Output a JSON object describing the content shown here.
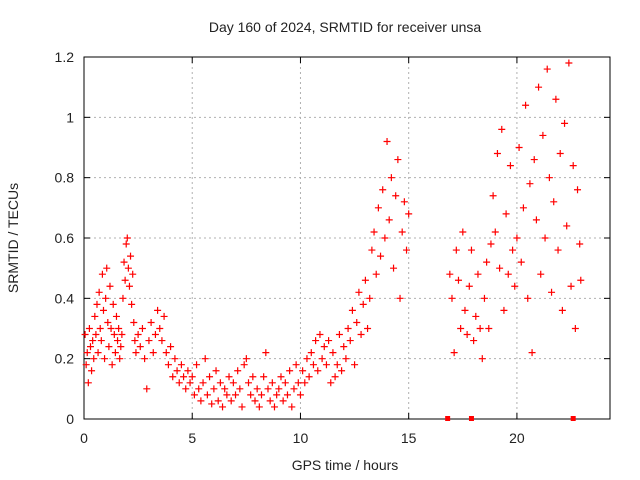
{
  "chart_data": {
    "type": "scatter",
    "title": "Day 160 of 2024, SRMTID for receiver unsa",
    "xlabel": "GPS time / hours",
    "ylabel": "SRMTID / TECUs",
    "xlim": [
      0,
      24.3
    ],
    "ylim": [
      0,
      1.2
    ],
    "xticks": [
      0,
      5,
      10,
      15,
      20
    ],
    "yticks": [
      0,
      0.2,
      0.4,
      0.6,
      0.8,
      1,
      1.2
    ],
    "xtick_labels": [
      "0",
      "5",
      "10",
      "15",
      "20"
    ],
    "ytick_labels": [
      "0",
      "0.2",
      "0.4",
      "0.6",
      "0.8",
      "1",
      "1.2"
    ],
    "grid": true,
    "marker": "plus",
    "series_color": "#ff0000",
    "series": [
      {
        "name": "SRMTID",
        "points": [
          [
            0.05,
            0.28
          ],
          [
            0.1,
            0.18
          ],
          [
            0.15,
            0.22
          ],
          [
            0.2,
            0.12
          ],
          [
            0.25,
            0.3
          ],
          [
            0.3,
            0.24
          ],
          [
            0.35,
            0.16
          ],
          [
            0.4,
            0.26
          ],
          [
            0.45,
            0.2
          ],
          [
            0.5,
            0.34
          ],
          [
            0.55,
            0.28
          ],
          [
            0.6,
            0.38
          ],
          [
            0.65,
            0.22
          ],
          [
            0.7,
            0.42
          ],
          [
            0.75,
            0.3
          ],
          [
            0.8,
            0.26
          ],
          [
            0.85,
            0.48
          ],
          [
            0.9,
            0.36
          ],
          [
            0.95,
            0.2
          ],
          [
            1.0,
            0.4
          ],
          [
            1.05,
            0.5
          ],
          [
            1.1,
            0.32
          ],
          [
            1.15,
            0.24
          ],
          [
            1.2,
            0.44
          ],
          [
            1.25,
            0.3
          ],
          [
            1.3,
            0.18
          ],
          [
            1.35,
            0.38
          ],
          [
            1.4,
            0.28
          ],
          [
            1.45,
            0.22
          ],
          [
            1.5,
            0.34
          ],
          [
            1.55,
            0.26
          ],
          [
            1.6,
            0.3
          ],
          [
            1.65,
            0.2
          ],
          [
            1.7,
            0.24
          ],
          [
            1.75,
            0.28
          ],
          [
            1.8,
            0.4
          ],
          [
            1.85,
            0.52
          ],
          [
            1.9,
            0.46
          ],
          [
            1.95,
            0.58
          ],
          [
            2.0,
            0.6
          ],
          [
            2.05,
            0.5
          ],
          [
            2.1,
            0.44
          ],
          [
            2.15,
            0.54
          ],
          [
            2.2,
            0.38
          ],
          [
            2.25,
            0.48
          ],
          [
            2.3,
            0.32
          ],
          [
            2.35,
            0.26
          ],
          [
            2.4,
            0.22
          ],
          [
            2.5,
            0.28
          ],
          [
            2.6,
            0.24
          ],
          [
            2.7,
            0.3
          ],
          [
            2.8,
            0.2
          ],
          [
            2.9,
            0.1
          ],
          [
            3.0,
            0.26
          ],
          [
            3.1,
            0.32
          ],
          [
            3.2,
            0.22
          ],
          [
            3.3,
            0.28
          ],
          [
            3.4,
            0.36
          ],
          [
            3.5,
            0.3
          ],
          [
            3.6,
            0.26
          ],
          [
            3.7,
            0.34
          ],
          [
            3.8,
            0.22
          ],
          [
            3.9,
            0.18
          ],
          [
            4.0,
            0.24
          ],
          [
            4.1,
            0.14
          ],
          [
            4.2,
            0.2
          ],
          [
            4.3,
            0.16
          ],
          [
            4.4,
            0.12
          ],
          [
            4.5,
            0.18
          ],
          [
            4.6,
            0.14
          ],
          [
            4.7,
            0.1
          ],
          [
            4.8,
            0.16
          ],
          [
            4.9,
            0.12
          ],
          [
            5.0,
            0.14
          ],
          [
            5.1,
            0.08
          ],
          [
            5.2,
            0.18
          ],
          [
            5.3,
            0.1
          ],
          [
            5.4,
            0.06
          ],
          [
            5.5,
            0.12
          ],
          [
            5.6,
            0.2
          ],
          [
            5.7,
            0.08
          ],
          [
            5.8,
            0.14
          ],
          [
            5.9,
            0.05
          ],
          [
            6.0,
            0.1
          ],
          [
            6.1,
            0.16
          ],
          [
            6.2,
            0.06
          ],
          [
            6.3,
            0.12
          ],
          [
            6.4,
            0.04
          ],
          [
            6.5,
            0.1
          ],
          [
            6.6,
            0.08
          ],
          [
            6.7,
            0.14
          ],
          [
            6.8,
            0.06
          ],
          [
            6.9,
            0.12
          ],
          [
            7.0,
            0.08
          ],
          [
            7.1,
            0.16
          ],
          [
            7.2,
            0.1
          ],
          [
            7.3,
            0.04
          ],
          [
            7.4,
            0.18
          ],
          [
            7.5,
            0.2
          ],
          [
            7.6,
            0.12
          ],
          [
            7.7,
            0.08
          ],
          [
            7.8,
            0.14
          ],
          [
            7.9,
            0.06
          ],
          [
            8.0,
            0.1
          ],
          [
            8.1,
            0.04
          ],
          [
            8.2,
            0.08
          ],
          [
            8.3,
            0.14
          ],
          [
            8.4,
            0.22
          ],
          [
            8.5,
            0.1
          ],
          [
            8.6,
            0.06
          ],
          [
            8.7,
            0.12
          ],
          [
            8.8,
            0.04
          ],
          [
            8.9,
            0.08
          ],
          [
            9.0,
            0.1
          ],
          [
            9.1,
            0.14
          ],
          [
            9.2,
            0.06
          ],
          [
            9.3,
            0.12
          ],
          [
            9.4,
            0.08
          ],
          [
            9.5,
            0.16
          ],
          [
            9.6,
            0.04
          ],
          [
            9.7,
            0.1
          ],
          [
            9.8,
            0.18
          ],
          [
            9.9,
            0.12
          ],
          [
            10.0,
            0.08
          ],
          [
            10.1,
            0.16
          ],
          [
            10.2,
            0.12
          ],
          [
            10.3,
            0.2
          ],
          [
            10.4,
            0.14
          ],
          [
            10.5,
            0.22
          ],
          [
            10.6,
            0.18
          ],
          [
            10.7,
            0.26
          ],
          [
            10.8,
            0.16
          ],
          [
            10.9,
            0.28
          ],
          [
            11.0,
            0.2
          ],
          [
            11.1,
            0.24
          ],
          [
            11.2,
            0.18
          ],
          [
            11.3,
            0.26
          ],
          [
            11.4,
            0.12
          ],
          [
            11.5,
            0.22
          ],
          [
            11.6,
            0.14
          ],
          [
            11.7,
            0.18
          ],
          [
            11.8,
            0.28
          ],
          [
            11.9,
            0.16
          ],
          [
            12.0,
            0.24
          ],
          [
            12.1,
            0.2
          ],
          [
            12.2,
            0.3
          ],
          [
            12.3,
            0.26
          ],
          [
            12.4,
            0.36
          ],
          [
            12.5,
            0.18
          ],
          [
            12.6,
            0.32
          ],
          [
            12.7,
            0.42
          ],
          [
            12.8,
            0.28
          ],
          [
            12.9,
            0.38
          ],
          [
            13.0,
            0.46
          ],
          [
            13.1,
            0.3
          ],
          [
            13.2,
            0.4
          ],
          [
            13.3,
            0.56
          ],
          [
            13.4,
            0.62
          ],
          [
            13.5,
            0.48
          ],
          [
            13.6,
            0.7
          ],
          [
            13.7,
            0.54
          ],
          [
            13.8,
            0.76
          ],
          [
            13.9,
            0.6
          ],
          [
            14.0,
            0.92
          ],
          [
            14.1,
            0.66
          ],
          [
            14.2,
            0.8
          ],
          [
            14.3,
            0.5
          ],
          [
            14.4,
            0.74
          ],
          [
            14.5,
            0.86
          ],
          [
            14.6,
            0.4
          ],
          [
            14.7,
            0.62
          ],
          [
            14.8,
            0.72
          ],
          [
            14.9,
            0.56
          ],
          [
            15.0,
            0.68
          ],
          [
            16.9,
            0.48
          ],
          [
            17.0,
            0.4
          ],
          [
            17.1,
            0.22
          ],
          [
            17.2,
            0.56
          ],
          [
            17.3,
            0.46
          ],
          [
            17.4,
            0.3
          ],
          [
            17.5,
            0.62
          ],
          [
            17.6,
            0.36
          ],
          [
            17.7,
            0.28
          ],
          [
            17.8,
            0.44
          ],
          [
            17.9,
            0.56
          ],
          [
            18.0,
            0.26
          ],
          [
            18.1,
            0.34
          ],
          [
            18.2,
            0.48
          ],
          [
            18.3,
            0.3
          ],
          [
            18.4,
            0.2
          ],
          [
            18.5,
            0.4
          ],
          [
            18.6,
            0.52
          ],
          [
            18.7,
            0.3
          ],
          [
            18.8,
            0.58
          ],
          [
            18.9,
            0.74
          ],
          [
            19.0,
            0.62
          ],
          [
            19.1,
            0.88
          ],
          [
            19.2,
            0.5
          ],
          [
            19.3,
            0.96
          ],
          [
            19.4,
            0.36
          ],
          [
            19.5,
            0.68
          ],
          [
            19.6,
            0.48
          ],
          [
            19.7,
            0.84
          ],
          [
            19.8,
            0.56
          ],
          [
            19.9,
            0.44
          ],
          [
            20.0,
            0.6
          ],
          [
            20.1,
            0.9
          ],
          [
            20.2,
            0.52
          ],
          [
            20.3,
            0.7
          ],
          [
            20.4,
            1.04
          ],
          [
            20.5,
            0.4
          ],
          [
            20.6,
            0.78
          ],
          [
            20.7,
            0.22
          ],
          [
            20.8,
            0.86
          ],
          [
            20.9,
            0.66
          ],
          [
            21.0,
            1.1
          ],
          [
            21.1,
            0.48
          ],
          [
            21.2,
            0.94
          ],
          [
            21.3,
            0.6
          ],
          [
            21.4,
            1.16
          ],
          [
            21.5,
            0.8
          ],
          [
            21.6,
            0.42
          ],
          [
            21.7,
            0.72
          ],
          [
            21.8,
            1.06
          ],
          [
            21.9,
            0.56
          ],
          [
            22.0,
            0.88
          ],
          [
            22.1,
            0.36
          ],
          [
            22.2,
            0.98
          ],
          [
            22.3,
            0.64
          ],
          [
            22.4,
            1.18
          ],
          [
            22.5,
            0.44
          ],
          [
            22.6,
            0.84
          ],
          [
            22.7,
            0.3
          ],
          [
            22.8,
            0.76
          ],
          [
            22.9,
            0.58
          ],
          [
            22.95,
            0.46
          ]
        ]
      }
    ],
    "axis_markers_x": [
      16.8,
      17.9,
      22.6
    ]
  }
}
